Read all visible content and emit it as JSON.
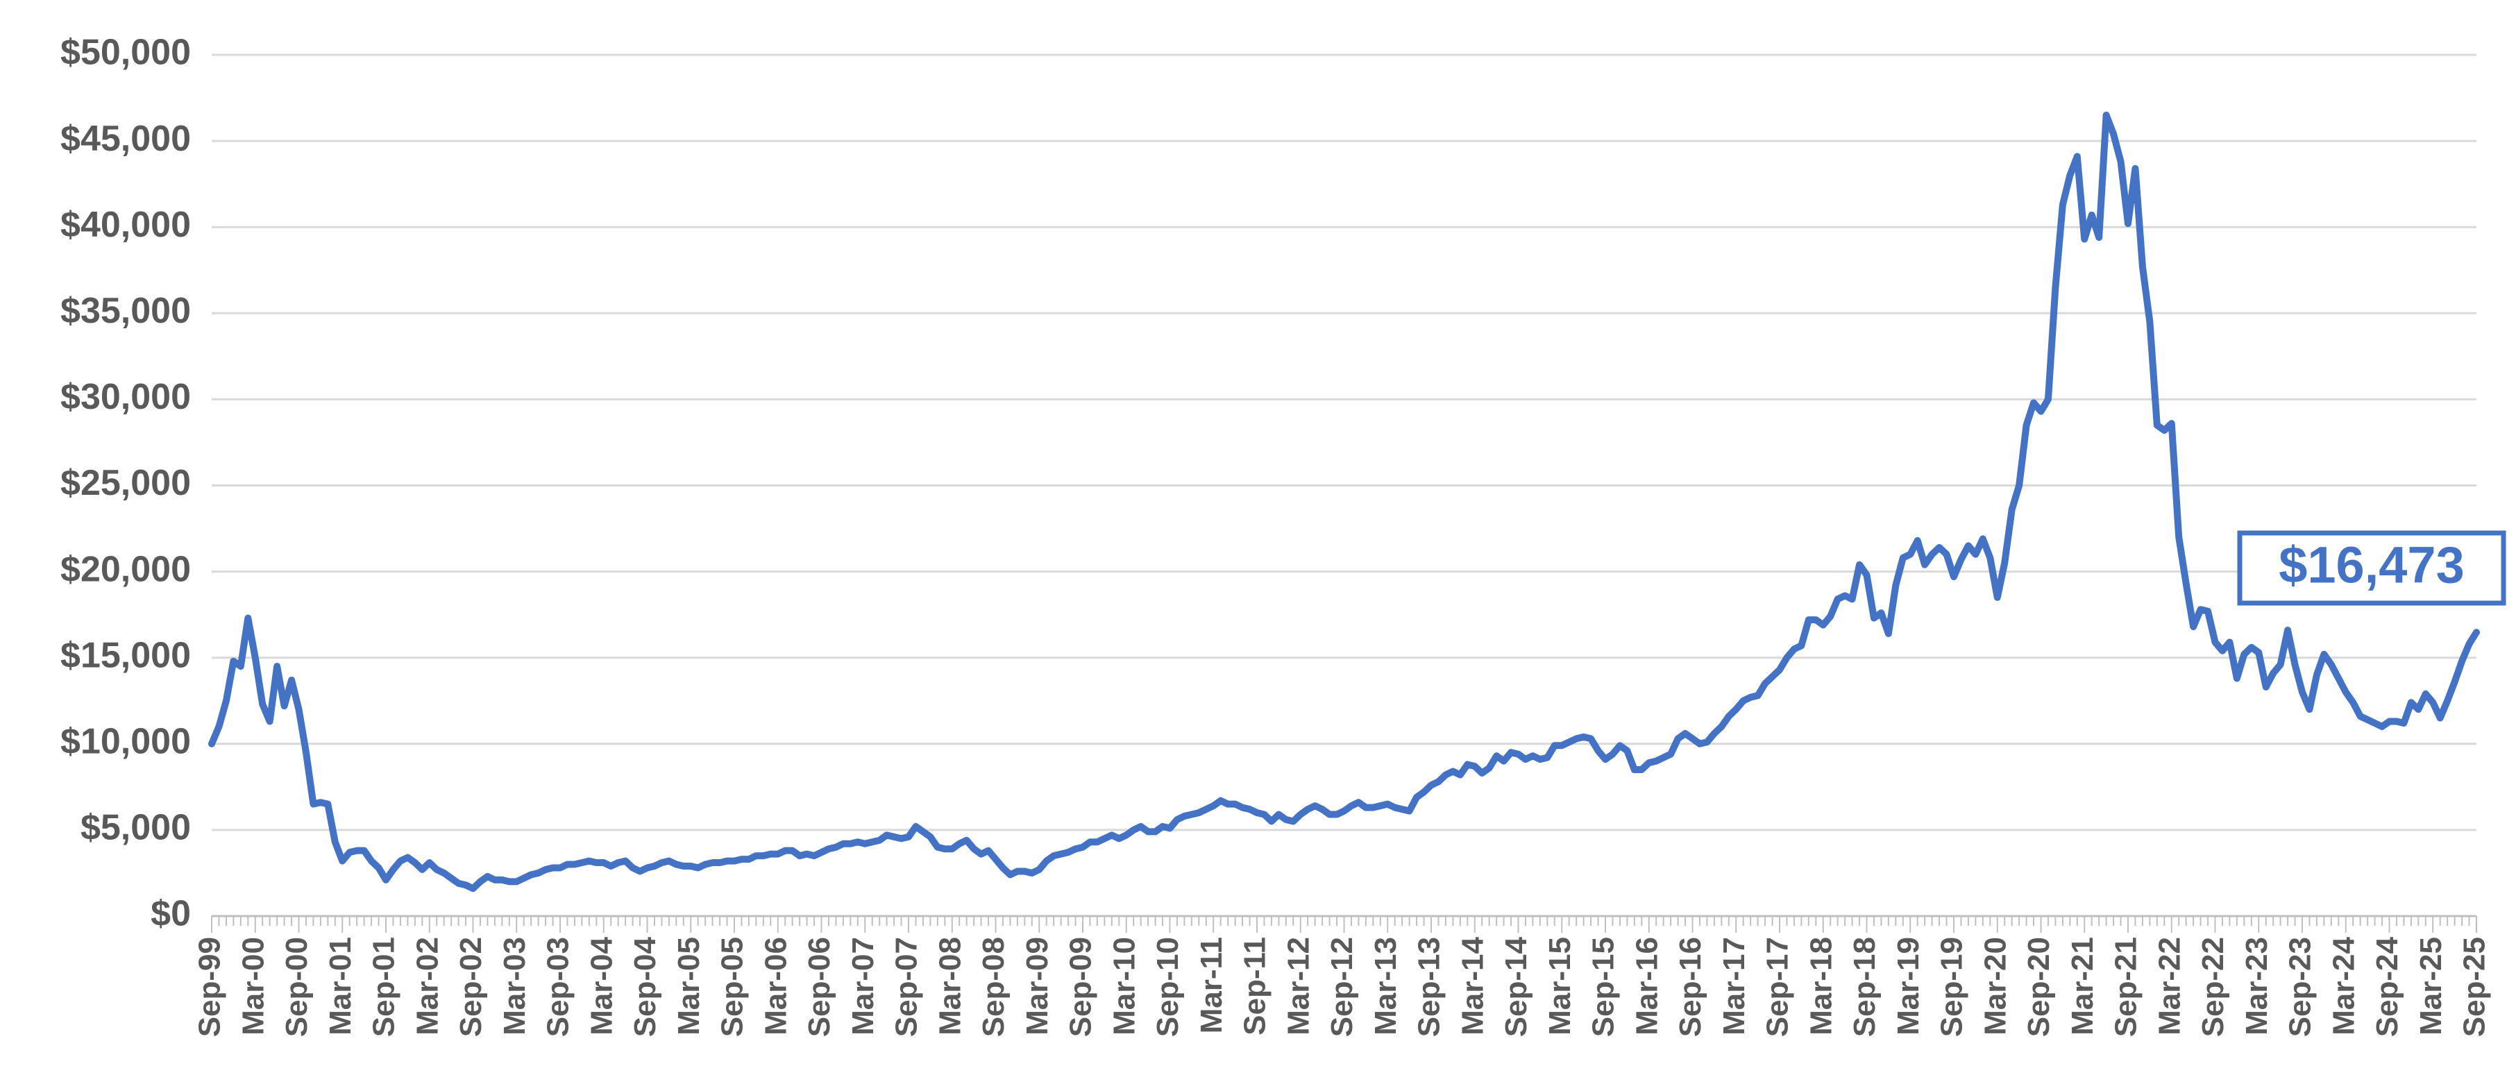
{
  "chart_data": {
    "type": "line",
    "annotation": "$16,473",
    "color": "#4472c4",
    "grid": true,
    "ylim": [
      0,
      50000
    ],
    "yticks": [
      {
        "value": 0,
        "label": "$0"
      },
      {
        "value": 5000,
        "label": "$5,000"
      },
      {
        "value": 10000,
        "label": "$10,000"
      },
      {
        "value": 15000,
        "label": "$15,000"
      },
      {
        "value": 20000,
        "label": "$20,000"
      },
      {
        "value": 25000,
        "label": "$25,000"
      },
      {
        "value": 30000,
        "label": "$30,000"
      },
      {
        "value": 35000,
        "label": "$35,000"
      },
      {
        "value": 40000,
        "label": "$40,000"
      },
      {
        "value": 45000,
        "label": "$45,000"
      },
      {
        "value": 50000,
        "label": "$50,000"
      }
    ],
    "categories": [
      "Sep-99",
      null,
      null,
      null,
      null,
      null,
      "Mar-00",
      null,
      null,
      null,
      null,
      null,
      "Sep-00",
      null,
      null,
      null,
      null,
      null,
      "Mar-01",
      null,
      null,
      null,
      null,
      null,
      "Sep-01",
      null,
      null,
      null,
      null,
      null,
      "Mar-02",
      null,
      null,
      null,
      null,
      null,
      "Sep-02",
      null,
      null,
      null,
      null,
      null,
      "Mar-03",
      null,
      null,
      null,
      null,
      null,
      "Sep-03",
      null,
      null,
      null,
      null,
      null,
      "Mar-04",
      null,
      null,
      null,
      null,
      null,
      "Sep-04",
      null,
      null,
      null,
      null,
      null,
      "Mar-05",
      null,
      null,
      null,
      null,
      null,
      "Sep-05",
      null,
      null,
      null,
      null,
      null,
      "Mar-06",
      null,
      null,
      null,
      null,
      null,
      "Sep-06",
      null,
      null,
      null,
      null,
      null,
      "Mar-07",
      null,
      null,
      null,
      null,
      null,
      "Sep-07",
      null,
      null,
      null,
      null,
      null,
      "Mar-08",
      null,
      null,
      null,
      null,
      null,
      "Sep-08",
      null,
      null,
      null,
      null,
      null,
      "Mar-09",
      null,
      null,
      null,
      null,
      null,
      "Sep-09",
      null,
      null,
      null,
      null,
      null,
      "Mar-10",
      null,
      null,
      null,
      null,
      null,
      "Sep-10",
      null,
      null,
      null,
      null,
      null,
      "Mar-11",
      null,
      null,
      null,
      null,
      null,
      "Sep-11",
      null,
      null,
      null,
      null,
      null,
      "Mar-12",
      null,
      null,
      null,
      null,
      null,
      "Sep-12",
      null,
      null,
      null,
      null,
      null,
      "Mar-13",
      null,
      null,
      null,
      null,
      null,
      "Sep-13",
      null,
      null,
      null,
      null,
      null,
      "Mar-14",
      null,
      null,
      null,
      null,
      null,
      "Sep-14",
      null,
      null,
      null,
      null,
      null,
      "Mar-15",
      null,
      null,
      null,
      null,
      null,
      "Sep-15",
      null,
      null,
      null,
      null,
      null,
      "Mar-16",
      null,
      null,
      null,
      null,
      null,
      "Sep-16",
      null,
      null,
      null,
      null,
      null,
      "Mar-17",
      null,
      null,
      null,
      null,
      null,
      "Sep-17",
      null,
      null,
      null,
      null,
      null,
      "Mar-18",
      null,
      null,
      null,
      null,
      null,
      "Sep-18",
      null,
      null,
      null,
      null,
      null,
      "Mar-19",
      null,
      null,
      null,
      null,
      null,
      "Sep-19",
      null,
      null,
      null,
      null,
      null,
      "Mar-20",
      null,
      null,
      null,
      null,
      null,
      "Sep-20",
      null,
      null,
      null,
      null,
      null,
      "Mar-21",
      null,
      null,
      null,
      null,
      null,
      "Sep-21",
      null,
      null,
      null,
      null,
      null,
      "Mar-22",
      null,
      null,
      null,
      null,
      null,
      "Sep-22",
      null,
      null,
      null,
      null,
      null,
      "Mar-23",
      null,
      null,
      null,
      null,
      null,
      "Sep-23",
      null,
      null,
      null,
      null,
      null,
      "Mar-24",
      null,
      null,
      null,
      null,
      null,
      "Sep-24",
      null,
      null,
      null,
      null,
      null,
      "Mar-25",
      null,
      null,
      null,
      null,
      null,
      "Sep-25"
    ],
    "values": [
      10000,
      11000,
      12500,
      14800,
      14500,
      17300,
      15000,
      12300,
      11300,
      14500,
      12200,
      13700,
      12000,
      9500,
      6500,
      6600,
      6500,
      4300,
      3200,
      3700,
      3800,
      3800,
      3200,
      2800,
      2100,
      2700,
      3200,
      3400,
      3100,
      2700,
      3100,
      2700,
      2500,
      2200,
      1900,
      1800,
      1600,
      2000,
      2300,
      2100,
      2100,
      2000,
      2000,
      2200,
      2400,
      2500,
      2700,
      2800,
      2800,
      3000,
      3000,
      3100,
      3200,
      3100,
      3100,
      2900,
      3100,
      3200,
      2800,
      2600,
      2800,
      2900,
      3100,
      3200,
      3000,
      2900,
      2900,
      2800,
      3000,
      3100,
      3100,
      3200,
      3200,
      3300,
      3300,
      3500,
      3500,
      3600,
      3600,
      3800,
      3800,
      3500,
      3600,
      3500,
      3700,
      3900,
      4000,
      4200,
      4200,
      4300,
      4200,
      4300,
      4400,
      4700,
      4600,
      4500,
      4600,
      5200,
      4900,
      4600,
      4000,
      3900,
      3900,
      4200,
      4400,
      3900,
      3600,
      3800,
      3300,
      2800,
      2400,
      2600,
      2600,
      2500,
      2700,
      3200,
      3500,
      3600,
      3700,
      3900,
      4000,
      4300,
      4300,
      4500,
      4700,
      4500,
      4700,
      5000,
      5200,
      4900,
      4900,
      5200,
      5100,
      5600,
      5800,
      5900,
      6000,
      6200,
      6400,
      6700,
      6500,
      6500,
      6300,
      6200,
      6000,
      5900,
      5500,
      5900,
      5600,
      5500,
      5900,
      6200,
      6400,
      6200,
      5900,
      5900,
      6100,
      6400,
      6600,
      6300,
      6300,
      6400,
      6500,
      6300,
      6200,
      6100,
      6900,
      7200,
      7600,
      7800,
      8200,
      8400,
      8200,
      8800,
      8700,
      8300,
      8600,
      9300,
      9000,
      9500,
      9400,
      9100,
      9300,
      9100,
      9200,
      9900,
      9900,
      10100,
      10300,
      10400,
      10300,
      9600,
      9100,
      9400,
      9900,
      9600,
      8500,
      8500,
      8900,
      9000,
      9200,
      9400,
      10300,
      10600,
      10300,
      10000,
      10100,
      10600,
      11000,
      11600,
      12000,
      12500,
      12700,
      12800,
      13500,
      13900,
      14300,
      15000,
      15500,
      15700,
      17200,
      17200,
      16900,
      17400,
      18400,
      18600,
      18400,
      20400,
      19800,
      17300,
      17600,
      16400,
      19200,
      20800,
      21000,
      21800,
      20400,
      21000,
      21400,
      21000,
      19700,
      20700,
      21500,
      21000,
      21900,
      20800,
      18500,
      20500,
      23600,
      25000,
      28500,
      29800,
      29300,
      30000,
      36500,
      41300,
      43000,
      44100,
      39300,
      40700,
      39400,
      46500,
      45400,
      43800,
      40200,
      43400,
      37700,
      34500,
      28500,
      28200,
      28600,
      22000,
      19300,
      16800,
      17800,
      17700,
      15900,
      15400,
      15900,
      13800,
      15200,
      15600,
      15300,
      13300,
      14100,
      14600,
      16600,
      14600,
      13000,
      12000,
      14000,
      15200,
      14600,
      13800,
      13000,
      12400,
      11600,
      11400,
      11200,
      11000,
      11300,
      11300,
      11200,
      12400,
      12000,
      12900,
      12400,
      11500,
      12500,
      13600,
      14800,
      15800,
      16473
    ]
  }
}
